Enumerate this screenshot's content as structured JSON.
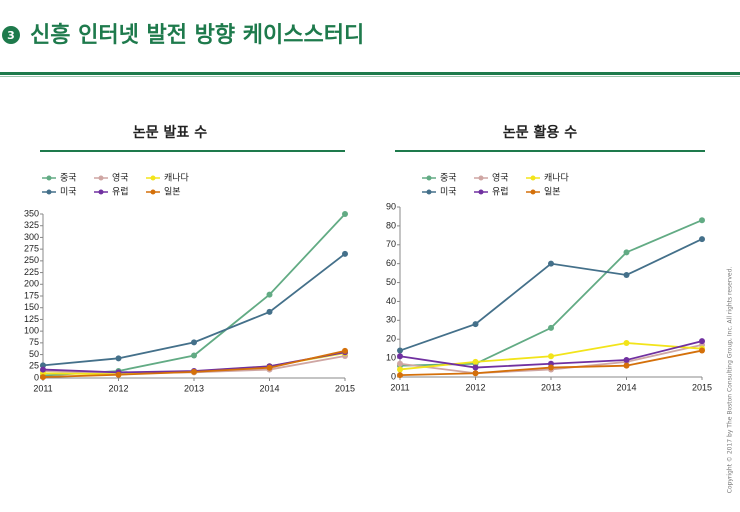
{
  "header": {
    "badge": "3",
    "title": "신흥 인터넷 발전 방향 케이스스터디"
  },
  "footer": {
    "copyright": "Copyright © 2017 by The Boston Consulting Group, Inc. All rights reserved."
  },
  "chart_data": [
    {
      "type": "line",
      "title": "논문 발표 수",
      "categories": [
        "2011",
        "2012",
        "2013",
        "2014",
        "2015"
      ],
      "series": [
        {
          "name": "중국",
          "color": "#62ab84",
          "values": [
            5,
            15,
            48,
            178,
            350
          ]
        },
        {
          "name": "영국",
          "color": "#cfa6a3",
          "values": [
            15,
            10,
            12,
            18,
            47
          ]
        },
        {
          "name": "캐나다",
          "color": "#f2e41a",
          "values": [
            10,
            8,
            14,
            25,
            53
          ]
        },
        {
          "name": "미국",
          "color": "#44708a",
          "values": [
            27,
            42,
            76,
            141,
            265
          ]
        },
        {
          "name": "유럽",
          "color": "#7030a0",
          "values": [
            18,
            12,
            15,
            25,
            55
          ]
        },
        {
          "name": "일본",
          "color": "#d4700a",
          "values": [
            2,
            7,
            13,
            22,
            58
          ]
        }
      ],
      "ylim": [
        0,
        350
      ],
      "yticks": [
        0,
        25,
        50,
        75,
        100,
        125,
        150,
        175,
        200,
        225,
        250,
        275,
        300,
        325,
        350
      ]
    },
    {
      "type": "line",
      "title": "논문 활용 수",
      "categories": [
        "2011",
        "2012",
        "2013",
        "2014",
        "2015"
      ],
      "series": [
        {
          "name": "중국",
          "color": "#62ab84",
          "values": [
            6,
            7,
            26,
            66,
            83
          ]
        },
        {
          "name": "영국",
          "color": "#cfa6a3",
          "values": [
            7,
            2,
            4,
            8,
            17
          ]
        },
        {
          "name": "캐나다",
          "color": "#f2e41a",
          "values": [
            4,
            8,
            11,
            18,
            15
          ]
        },
        {
          "name": "미국",
          "color": "#44708a",
          "values": [
            14,
            28,
            60,
            54,
            73
          ]
        },
        {
          "name": "유럽",
          "color": "#7030a0",
          "values": [
            11,
            5,
            7,
            9,
            19
          ]
        },
        {
          "name": "일본",
          "color": "#d4700a",
          "values": [
            1,
            2,
            5,
            6,
            14
          ]
        }
      ],
      "ylim": [
        0,
        90
      ],
      "yticks": [
        0,
        10,
        20,
        30,
        40,
        50,
        60,
        70,
        80,
        90
      ]
    }
  ]
}
